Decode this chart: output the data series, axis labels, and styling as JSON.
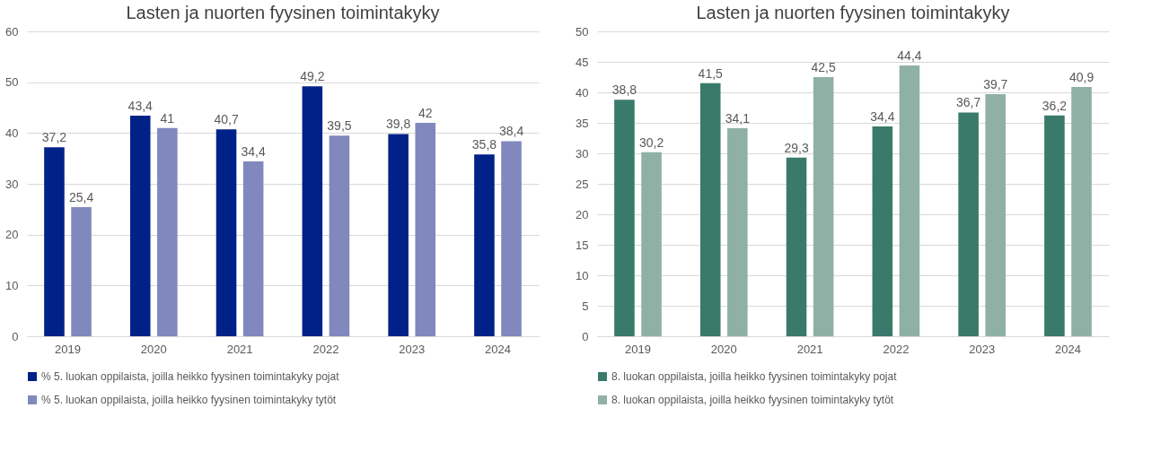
{
  "chart_data": [
    {
      "type": "bar",
      "title": "Lasten ja nuorten fyysinen toimintakyky",
      "categories": [
        "2019",
        "2020",
        "2021",
        "2022",
        "2023",
        "2024"
      ],
      "ylim": [
        0,
        60
      ],
      "yticks": [
        0,
        10,
        20,
        30,
        40,
        50,
        60
      ],
      "grid": "y",
      "legend": "bottom",
      "series": [
        {
          "name": "% 5. luokan oppilaista, joilla heikko fyysinen toimintakyky pojat",
          "color": "#002288",
          "values": [
            37.2,
            43.4,
            40.7,
            49.2,
            39.8,
            35.8
          ],
          "value_labels": [
            "37,2",
            "43,4",
            "40,7",
            "49,2",
            "39,8",
            "35,8"
          ]
        },
        {
          "name": "% 5. luokan oppilaista, joilla heikko fyysinen toimintakyky tytöt",
          "color": "#8088bd",
          "values": [
            25.4,
            41,
            34.4,
            39.5,
            42,
            38.4
          ],
          "value_labels": [
            "25,4",
            "41",
            "34,4",
            "39,5",
            "42",
            "38,4"
          ]
        }
      ]
    },
    {
      "type": "bar",
      "title": "Lasten ja nuorten fyysinen toimintakyky",
      "categories": [
        "2019",
        "2020",
        "2021",
        "2022",
        "2023",
        "2024"
      ],
      "ylim": [
        0,
        50
      ],
      "yticks": [
        0,
        5,
        10,
        15,
        20,
        25,
        30,
        35,
        40,
        45,
        50
      ],
      "grid": "y",
      "legend": "bottom",
      "series": [
        {
          "name": "8. luokan oppilaista, joilla heikko fyysinen toimintakyky pojat",
          "color": "#3a7a6b",
          "values": [
            38.8,
            41.5,
            29.3,
            34.4,
            36.7,
            36.2
          ],
          "value_labels": [
            "38,8",
            "41,5",
            "29,3",
            "34,4",
            "36,7",
            "36,2"
          ]
        },
        {
          "name": "8. luokan oppilaista, joilla heikko fyysinen toimintakyky tytöt",
          "color": "#8fb0a5",
          "values": [
            30.2,
            34.1,
            42.5,
            44.4,
            39.7,
            40.9
          ],
          "value_labels": [
            "30,2",
            "34,1",
            "42,5",
            "44,4",
            "39,7",
            "40,9"
          ]
        }
      ]
    }
  ]
}
